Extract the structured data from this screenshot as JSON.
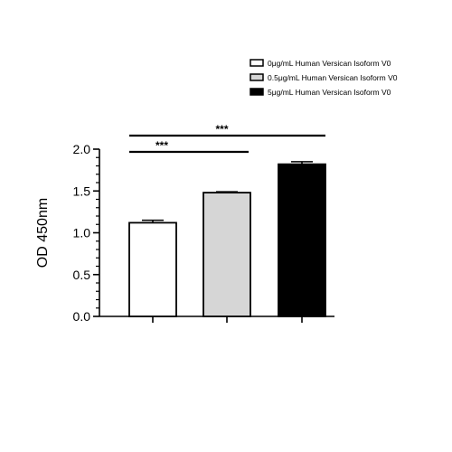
{
  "chart_data": {
    "type": "bar",
    "ylabel": "OD 450nm",
    "xlabel": "",
    "ylim": [
      0,
      2.0
    ],
    "yticks": [
      "0.0",
      "0.5",
      "1.0",
      "1.5",
      "2.0"
    ],
    "grid": false,
    "legend_position": "top-right",
    "series": [
      {
        "name": "0μg/mL Human Versican Isoform V0",
        "value": 1.12,
        "error": 0.03,
        "color": "#ffffff"
      },
      {
        "name": "0.5μg/mL Human Versican Isoform V0",
        "value": 1.48,
        "error": 0.01,
        "color": "#d6d6d6"
      },
      {
        "name": "5μg/mL Human Versican Isoform V0",
        "value": 1.82,
        "error": 0.03,
        "color": "#000000"
      }
    ],
    "significance": [
      {
        "from": 0,
        "to": 2,
        "label": "***"
      },
      {
        "from": 0,
        "to": 1,
        "label": "***"
      }
    ]
  }
}
